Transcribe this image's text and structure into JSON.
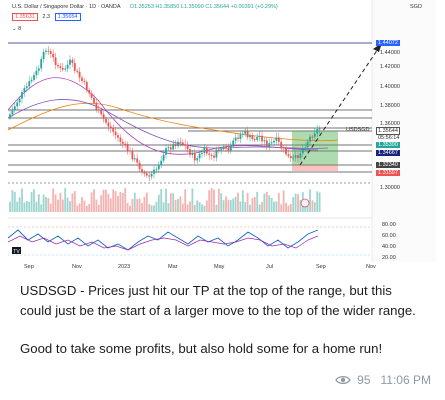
{
  "chart": {
    "symbol_title": "U.S. Dollar / Singapore Dollar · 1D · OANDA",
    "ohlc": "O1.35253 H1.35850 L1.35090 C1.35644 +0.00391 (+0.29%)",
    "bid": "1.35631",
    "spread": "2.3",
    "ask": "1.35654",
    "indicator_count": "8",
    "currency": "SGD",
    "price_tag_top": "1.44072",
    "symbol_tag": "USDSGD",
    "current_price": "1.35644",
    "countdown": "05:56:14",
    "tp_price": "1.35390",
    "price_1_34667": "1.34667",
    "price_1_32340": "1.32340",
    "price_1_31597": "1.31597",
    "price_scale": [
      "1.44000",
      "1.42000",
      "1.40000",
      "1.38000",
      "1.36000",
      "1.30000"
    ],
    "osc_scale": [
      "80.00",
      "60.00",
      "40.00",
      "20.00"
    ],
    "time_axis": [
      "Sep",
      "Nov",
      "2023",
      "Mar",
      "May",
      "Jul",
      "Sep",
      "Nov"
    ],
    "logo": "TV"
  },
  "message": {
    "paragraph1": "USDSGD - Prices just hit our TP at the top of the range, but this could just be the start of a larger move to the top of the wider range.",
    "paragraph2": "Good to take some profits, but also hold some for a home run!"
  },
  "footer": {
    "views": "95",
    "time": "11:06 PM"
  },
  "colors": {
    "up": "#26a69a",
    "down": "#ef5350",
    "blue_tag": "#2962ff",
    "navy_line": "#1a237e",
    "target_zone": "#4caf50"
  }
}
